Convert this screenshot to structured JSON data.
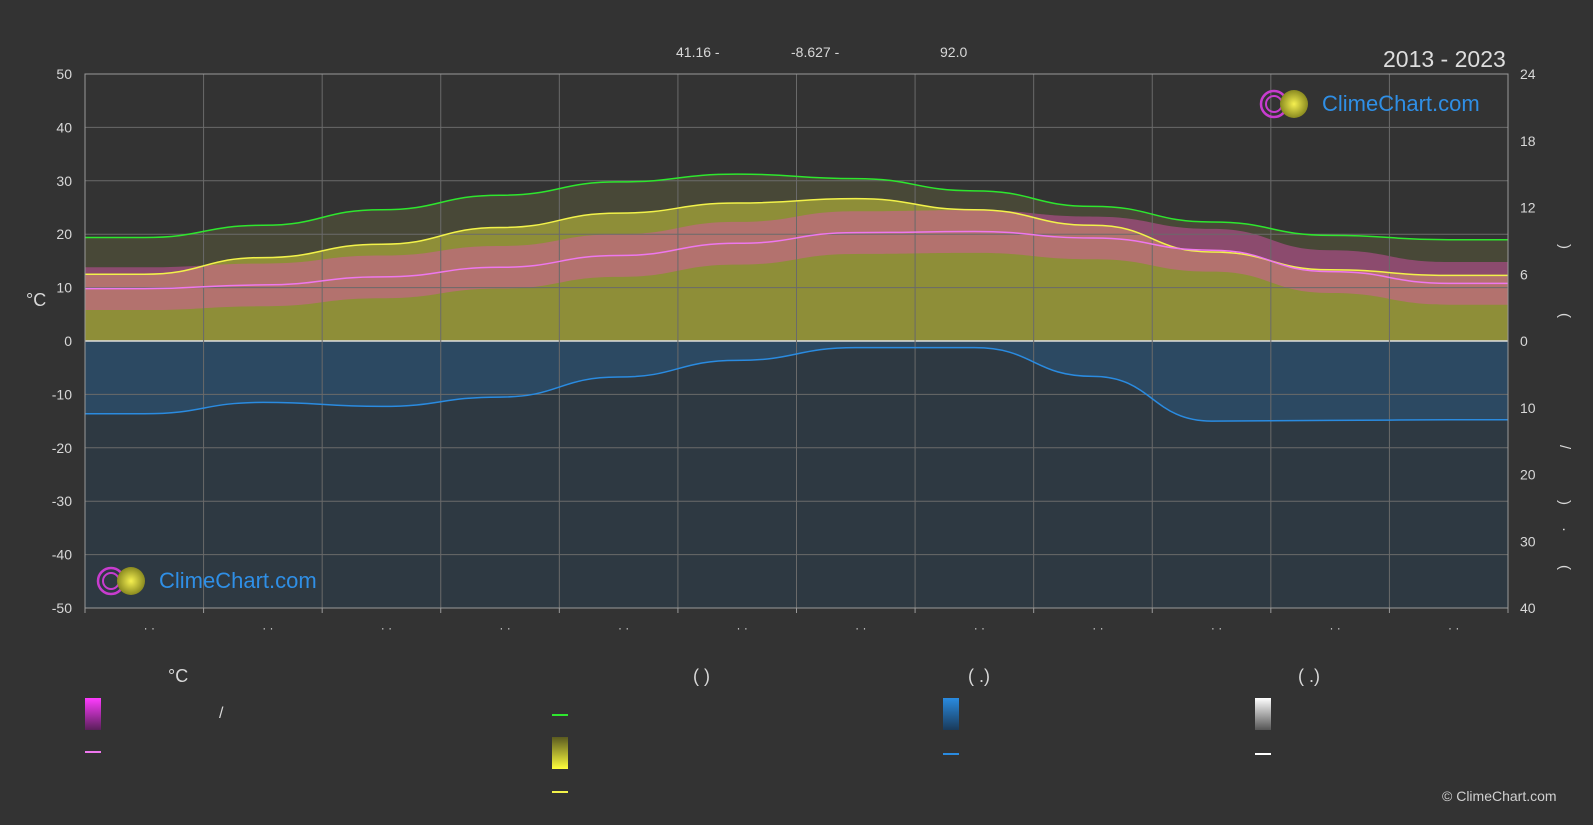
{
  "header": {
    "lat": "41.16 -",
    "lon": "-8.627 -",
    "elev": "92.0",
    "period": "2013 - 2023"
  },
  "brand": {
    "logo_text": "ClimeChart.com",
    "copyright": "© ClimeChart.com"
  },
  "axes": {
    "left_unit": "°C",
    "left_ticks": [
      "50",
      "40",
      "30",
      "20",
      "10",
      "0",
      "-10",
      "-20",
      "-30",
      "-40",
      "-50"
    ],
    "right_top_ticks": [
      "24",
      "18",
      "12",
      "6",
      "0"
    ],
    "right_bottom_ticks": [
      "10",
      "20",
      "30",
      "40"
    ],
    "right_glyphs": [
      ")",
      "(",
      "/",
      ")",
      "·",
      "("
    ],
    "month_labels": [
      "· ·",
      "· ·",
      "· ·",
      "· ·",
      "· ·",
      "· ·",
      "· ·",
      "· ·",
      "· ·",
      "· ·",
      "· ·",
      "· ·"
    ]
  },
  "legend": {
    "col1_head": "°C",
    "col1_item1": "/",
    "col2_head": "(           )",
    "col3_head": "(    .)",
    "col4_head": "(    .)"
  },
  "colors": {
    "daylight": "#2ee62e",
    "sunshine": "#f2f24a",
    "max_temp": "#f2f24a",
    "mean_temp": "#ee77ee",
    "temp_band": "#e04fb2",
    "sun_band": "#c9c93a",
    "precip": "#2a8be0",
    "background": "#333333"
  },
  "chart_data": {
    "type": "area",
    "months": 12,
    "left_axis": {
      "unit": "°C",
      "ylim": [
        -50,
        50
      ]
    },
    "right_axis_top": {
      "ylim": [
        0,
        24
      ],
      "ticks": [
        0,
        6,
        12,
        18,
        24
      ]
    },
    "right_axis_bottom": {
      "ylim": [
        0,
        40
      ],
      "ticks": [
        10,
        20,
        30,
        40
      ]
    },
    "grid": true,
    "series": [
      {
        "key": "daylight",
        "values": [
          9.3,
          10.4,
          11.8,
          13.1,
          14.3,
          15.0,
          14.6,
          13.5,
          12.1,
          10.7,
          9.5,
          9.1
        ]
      },
      {
        "key": "sunshine",
        "values": [
          6.0,
          7.5,
          8.7,
          10.2,
          11.5,
          12.4,
          12.8,
          11.8,
          10.4,
          8.0,
          6.4,
          5.9
        ]
      },
      {
        "key": "mean_temp",
        "values": [
          9.8,
          10.5,
          12.0,
          13.8,
          16.0,
          18.3,
          20.3,
          20.5,
          19.3,
          17.0,
          13.0,
          10.8
        ]
      },
      {
        "key": "precip",
        "values": [
          10.9,
          9.2,
          9.8,
          8.4,
          5.4,
          2.9,
          1.0,
          1.0,
          5.3,
          12.0,
          11.9,
          11.8
        ]
      }
    ]
  }
}
